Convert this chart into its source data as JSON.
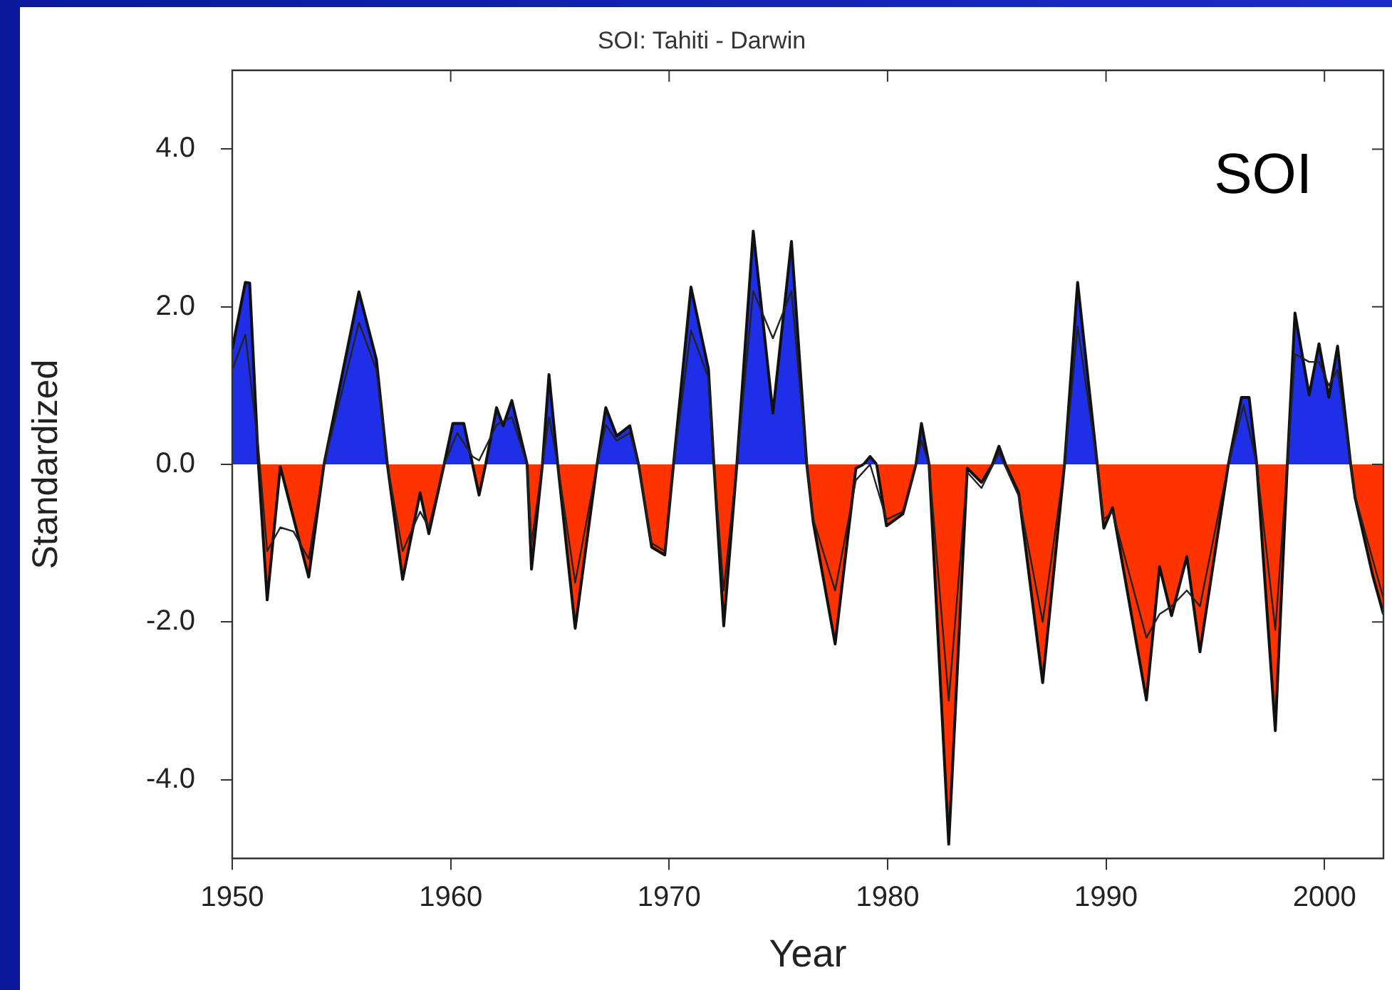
{
  "chart_data": {
    "type": "area",
    "title": "SOI: Tahiti - Darwin",
    "xlabel": "Year",
    "ylabel": "Standardized",
    "annotations": [
      "SOI"
    ],
    "xlim": [
      1950,
      2002.7
    ],
    "xticks": [
      1950,
      1960,
      1970,
      1980,
      1990,
      2000
    ],
    "ylim": [
      -5,
      5
    ],
    "yticks": [
      {
        "value": -4,
        "label": "-4.0"
      },
      {
        "value": -2,
        "label": "-2.0"
      },
      {
        "value": 0,
        "label": "0.0"
      },
      {
        "value": 2,
        "label": "2.0"
      },
      {
        "value": 4,
        "label": "4.0"
      }
    ],
    "x": [
      1950,
      1950.6,
      1950.8,
      1951.2,
      1951.6,
      1952.2,
      1953.5,
      1954.2,
      1955.8,
      1956.6,
      1957.1,
      1957.8,
      1958.6,
      1959.0,
      1959.7,
      1960.1,
      1960.6,
      1961.0,
      1961.3,
      1961.6,
      1962.1,
      1962.4,
      1962.8,
      1963.5,
      1963.7,
      1964.2,
      1964.5,
      1964.9,
      1965.7,
      1966.7,
      1967.1,
      1967.6,
      1968.2,
      1968.6,
      1969.2,
      1969.8,
      1970.2,
      1971.0,
      1971.8,
      1972.05,
      1972.5,
      1973.1,
      1973.85,
      1974.75,
      1975.6,
      1976.3,
      1976.6,
      1977.6,
      1978.55,
      1978.9,
      1979.2,
      1979.5,
      1979.95,
      1980.7,
      1981.3,
      1981.55,
      1981.9,
      1982.8,
      1983.65,
      1984.3,
      1984.8,
      1985.1,
      1985.4,
      1986.0,
      1987.1,
      1988.1,
      1988.7,
      1989.6,
      1989.9,
      1990.3,
      1991.85,
      1992.45,
      1993.0,
      1993.7,
      1994.3,
      1995.6,
      1996.2,
      1996.55,
      1996.9,
      1997.75,
      1998.3,
      1998.65,
      1999.3,
      1999.75,
      2000.2,
      2000.6,
      2001.2,
      2001.4,
      2002.2,
      2002.7
    ],
    "series": [
      {
        "color": "#1f2fe8",
        "values": [
          1.46,
          2.31,
          2.3,
          0,
          null,
          null,
          null,
          0,
          2.19,
          1.33,
          0,
          null,
          null,
          null,
          0,
          0.52,
          0.52,
          0,
          null,
          0,
          0.72,
          0.49,
          0.81,
          0,
          null,
          0,
          1.14,
          0,
          null,
          0,
          0.72,
          0.36,
          0.49,
          0,
          null,
          null,
          0,
          2.25,
          1.21,
          0,
          null,
          0,
          2.96,
          0.65,
          2.83,
          0,
          null,
          null,
          null,
          0,
          0.1,
          0,
          null,
          null,
          0,
          0.52,
          0,
          null,
          null,
          null,
          0,
          0.23,
          0,
          null,
          null,
          0,
          2.31,
          0,
          null,
          null,
          null,
          null,
          null,
          null,
          null,
          0,
          0.85,
          0.85,
          0,
          null,
          0,
          1.92,
          0.88,
          1.53,
          0.85,
          1.5,
          0,
          null,
          null,
          null
        ]
      },
      {
        "color": "#ff3300",
        "values": [
          null,
          null,
          null,
          0,
          -1.72,
          -0.03,
          -1.43,
          0,
          null,
          null,
          0,
          -1.46,
          -0.36,
          -0.88,
          0,
          null,
          null,
          0,
          -0.39,
          0,
          null,
          null,
          null,
          0,
          -1.33,
          0,
          null,
          0,
          -2.08,
          0,
          null,
          null,
          null,
          0,
          -1.05,
          -1.15,
          0,
          null,
          null,
          0,
          -2.05,
          0,
          null,
          null,
          null,
          0,
          -0.74,
          -2.28,
          -0.05,
          0,
          null,
          0,
          -0.78,
          -0.63,
          0,
          null,
          0,
          -4.82,
          -0.05,
          -0.23,
          0,
          null,
          0,
          -0.36,
          -2.77,
          0,
          null,
          0,
          -0.81,
          -0.55,
          -2.99,
          -1.3,
          -1.92,
          -1.17,
          -2.38,
          0,
          null,
          null,
          0,
          -3.38,
          0,
          null,
          null,
          null,
          null,
          null,
          0,
          -0.42,
          -1.4,
          -1.9
        ]
      },
      {
        "type": "line",
        "color": "#222222",
        "x": [
          1950,
          1950.6,
          1951.2,
          1951.6,
          1952.2,
          1952.8,
          1953.5,
          1954.2,
          1955.8,
          1956.6,
          1957.1,
          1957.8,
          1958.6,
          1959,
          1959.7,
          1960.3,
          1961,
          1961.3,
          1962.1,
          1962.8,
          1963.5,
          1963.7,
          1964.5,
          1964.9,
          1965.7,
          1966.7,
          1967.1,
          1967.6,
          1968.2,
          1968.6,
          1969.2,
          1969.8,
          1970.2,
          1971,
          1971.8,
          1972.05,
          1972.5,
          1973.1,
          1973.85,
          1974.75,
          1975.6,
          1976.3,
          1976.6,
          1977.6,
          1978.55,
          1979.2,
          1979.95,
          1980.7,
          1981.3,
          1981.55,
          1981.9,
          1982.8,
          1983.65,
          1984.3,
          1985.1,
          1986,
          1987.1,
          1988.1,
          1988.7,
          1989.6,
          1989.9,
          1990.3,
          1991.85,
          1992.45,
          1993,
          1993.7,
          1994.3,
          1995.6,
          1996.3,
          1996.9,
          1997.75,
          1998.3,
          1998.65,
          1999.3,
          1999.75,
          2000.2,
          2000.6,
          2001.2,
          2001.4,
          2002.2,
          2002.7
        ],
        "values": [
          1.2,
          1.65,
          0.2,
          -1.1,
          -0.8,
          -0.85,
          -1.2,
          0,
          1.8,
          1.2,
          0,
          -1.1,
          -0.6,
          -0.8,
          0,
          0.4,
          0.1,
          0.05,
          0.5,
          0.6,
          0,
          -1.0,
          0.6,
          0,
          -1.5,
          0,
          0.5,
          0.3,
          0.4,
          0,
          -1.0,
          -1.1,
          0,
          1.7,
          1.1,
          0,
          -1.6,
          0,
          2.2,
          1.6,
          2.2,
          0,
          -0.7,
          -1.6,
          -0.2,
          0,
          -0.7,
          -0.6,
          0,
          0.3,
          0,
          -3.0,
          -0.1,
          -0.3,
          0.15,
          -0.4,
          -2.0,
          0,
          1.75,
          0,
          -0.7,
          -0.6,
          -2.2,
          -1.9,
          -1.8,
          -1.6,
          -1.8,
          0,
          0.75,
          0,
          -2.1,
          0,
          1.4,
          1.3,
          1.3,
          1.0,
          1.2,
          0,
          -0.4,
          -1.2,
          -1.7
        ]
      }
    ]
  }
}
